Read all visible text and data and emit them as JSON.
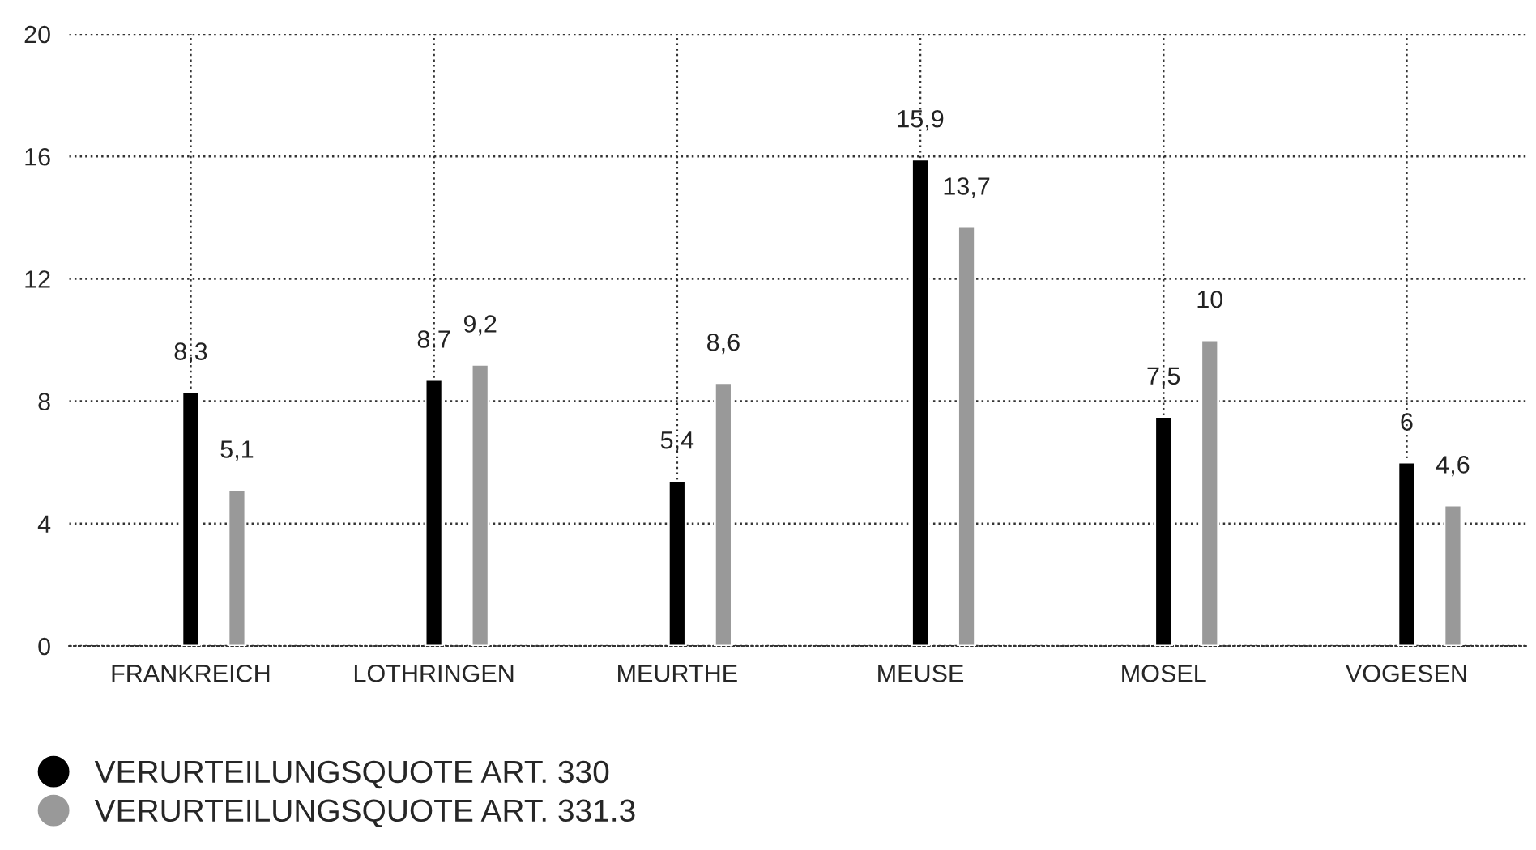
{
  "chart_data": {
    "type": "bar",
    "categories": [
      "FRANKREICH",
      "LOTHRINGEN",
      "MEURTHE",
      "MEUSE",
      "MOSEL",
      "VOGESEN"
    ],
    "series": [
      {
        "name": "VERURTEILUNGSQUOTE ART. 330",
        "color": "#000000",
        "values": [
          8.3,
          8.7,
          5.4,
          15.9,
          7.5,
          6
        ],
        "value_labels": [
          "8,3",
          "8.7",
          "5,4",
          "15,9",
          "7,5",
          "6"
        ]
      },
      {
        "name": "VERURTEILUNGSQUOTE ART. 331.3",
        "color": "#999999",
        "values": [
          5.1,
          9.2,
          8.6,
          13.7,
          10,
          4.6
        ],
        "value_labels": [
          "5,1",
          "9,2",
          "8,6",
          "13,7",
          "10",
          "4,6"
        ]
      }
    ],
    "ylim": [
      0,
      20
    ],
    "yticks": [
      0,
      4,
      8,
      12,
      16,
      20
    ],
    "grid": true,
    "legend": "bottom left"
  }
}
